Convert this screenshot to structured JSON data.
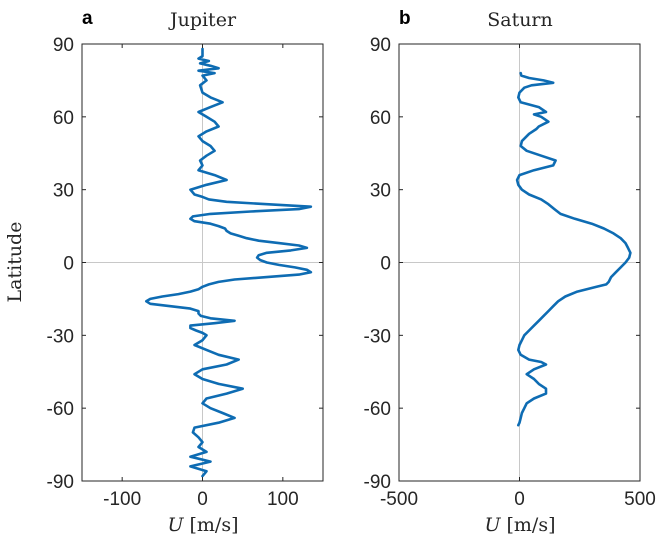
{
  "colors": {
    "series": "#0e6cb3",
    "axis": "#262626",
    "zero_line": "#c8c8c8"
  },
  "chart_data": [
    {
      "type": "line",
      "panel_label": "a",
      "title": "Jupiter",
      "xlabel_symbol": "U",
      "xlabel_unit": "[m/s]",
      "ylabel": "Latitude",
      "xlim": [
        -150,
        150
      ],
      "ylim": [
        -90,
        90
      ],
      "xticks": [
        -100,
        0,
        100
      ],
      "yticks": [
        -90,
        -60,
        -30,
        0,
        30,
        60,
        90
      ],
      "tick_labels_x": [
        "-100",
        "0",
        "100"
      ],
      "tick_labels_y": [
        "-90",
        "-60",
        "-30",
        "0",
        "30",
        "60",
        "90"
      ],
      "grid": false,
      "zero_lines": true,
      "series": [
        {
          "values_latitude": [
            88,
            85,
            84,
            83,
            82,
            81,
            80,
            79,
            78,
            77,
            75,
            73,
            70,
            68,
            66,
            64,
            62,
            60,
            58,
            56,
            54,
            52,
            50,
            48,
            46,
            44,
            42,
            40,
            38,
            36,
            34,
            32,
            30,
            28,
            27,
            26,
            25,
            24,
            23,
            22,
            21,
            20,
            19,
            18,
            17,
            16,
            15,
            14,
            13,
            12,
            11,
            10,
            9,
            8,
            7,
            6,
            5,
            4,
            3,
            2,
            1,
            0,
            -1,
            -2,
            -3,
            -4,
            -5,
            -6,
            -7,
            -8,
            -9,
            -10,
            -11,
            -12,
            -13,
            -14,
            -15,
            -16,
            -17,
            -18,
            -19,
            -20,
            -21,
            -22,
            -23,
            -24,
            -25,
            -26,
            -27,
            -28,
            -29,
            -30,
            -32,
            -34,
            -36,
            -38,
            -40,
            -42,
            -44,
            -46,
            -48,
            -50,
            -52,
            -54,
            -56,
            -58,
            -60,
            -62,
            -64,
            -66,
            -68,
            -70,
            -72,
            -74,
            -76,
            -78,
            -80,
            -82,
            -84,
            -86,
            -88
          ],
          "values_u": [
            0,
            0,
            -5,
            8,
            -3,
            10,
            20,
            -5,
            15,
            0,
            5,
            -3,
            0,
            10,
            25,
            10,
            -5,
            5,
            15,
            20,
            5,
            -5,
            0,
            10,
            15,
            5,
            -3,
            0,
            -5,
            15,
            30,
            5,
            -15,
            -10,
            0,
            8,
            30,
            80,
            135,
            120,
            60,
            10,
            -12,
            -15,
            -10,
            10,
            20,
            28,
            30,
            35,
            45,
            55,
            70,
            95,
            120,
            130,
            110,
            80,
            70,
            68,
            72,
            80,
            95,
            115,
            130,
            135,
            120,
            80,
            40,
            20,
            8,
            0,
            -5,
            -15,
            -30,
            -50,
            -65,
            -70,
            -65,
            -40,
            -15,
            -5,
            -5,
            -2,
            10,
            40,
            15,
            -15,
            -15,
            -8,
            0,
            5,
            0,
            -10,
            5,
            20,
            45,
            30,
            0,
            -10,
            0,
            20,
            50,
            30,
            5,
            0,
            10,
            25,
            40,
            20,
            -10,
            -12,
            -5,
            0,
            -5,
            5,
            -15,
            10,
            -15,
            5,
            0
          ]
        }
      ]
    },
    {
      "type": "line",
      "panel_label": "b",
      "title": "Saturn",
      "xlabel_symbol": "U",
      "xlabel_unit": "[m/s]",
      "ylabel": "",
      "xlim": [
        -500,
        500
      ],
      "ylim": [
        -90,
        90
      ],
      "xticks": [
        -500,
        0,
        500
      ],
      "yticks": [
        -90,
        -60,
        -30,
        0,
        30,
        60,
        90
      ],
      "tick_labels_x": [
        "-500",
        "0",
        "500"
      ],
      "tick_labels_y": [
        "-90",
        "-60",
        "-30",
        "0",
        "30",
        "60",
        "90"
      ],
      "grid": false,
      "zero_lines": true,
      "series": [
        {
          "values_latitude": [
            78,
            77,
            76,
            75,
            74,
            73,
            72,
            70,
            68,
            66,
            64,
            62,
            61,
            60,
            58,
            57,
            56,
            55,
            53,
            50,
            48,
            46,
            44,
            42,
            40,
            38,
            36,
            34,
            32,
            30,
            28,
            26,
            24,
            22,
            20,
            18,
            16,
            14,
            12,
            10,
            8,
            6,
            4,
            2,
            0,
            -2,
            -4,
            -6,
            -8,
            -9,
            -10,
            -12,
            -14,
            -16,
            -18,
            -20,
            -22,
            -24,
            -26,
            -28,
            -30,
            -32,
            -34,
            -36,
            -38,
            -40,
            -41,
            -42,
            -44,
            -46,
            -48,
            -50,
            -52,
            -54,
            -56,
            -58,
            -60,
            -62,
            -64,
            -66,
            -67
          ],
          "values_u": [
            5,
            8,
            40,
            100,
            140,
            50,
            20,
            0,
            -5,
            5,
            80,
            110,
            60,
            90,
            120,
            100,
            80,
            70,
            40,
            10,
            5,
            30,
            90,
            150,
            140,
            60,
            0,
            -10,
            -5,
            10,
            40,
            90,
            120,
            145,
            170,
            230,
            300,
            350,
            390,
            420,
            440,
            450,
            460,
            455,
            440,
            420,
            400,
            380,
            370,
            360,
            320,
            240,
            190,
            160,
            140,
            120,
            100,
            80,
            60,
            40,
            20,
            10,
            0,
            -5,
            5,
            40,
            90,
            110,
            60,
            30,
            60,
            80,
            110,
            110,
            60,
            30,
            20,
            10,
            5,
            0,
            -5
          ]
        }
      ]
    }
  ]
}
